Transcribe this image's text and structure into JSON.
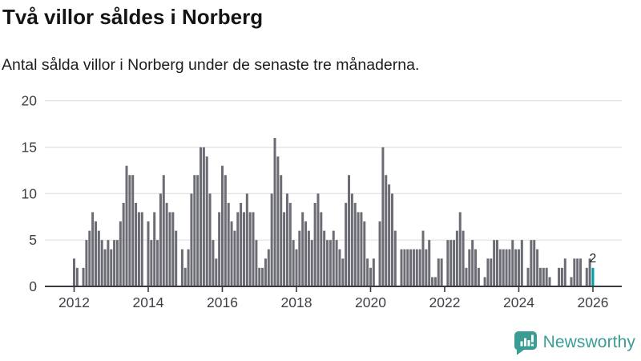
{
  "header": {
    "title": "Två villor såldes i Norberg",
    "subtitle": "Antal sålda villor i Norberg under de senaste tre månaderna."
  },
  "chart_data": {
    "type": "bar",
    "title": "Två villor såldes i Norberg",
    "description": "Antal sålda villor i Norberg under de senaste tre månaderna.",
    "x_start": "2012-01",
    "x_end": "2026-01",
    "bar_period": "month",
    "values": [
      3,
      2,
      0,
      2,
      5,
      6,
      8,
      7,
      6,
      5,
      4,
      5,
      4,
      5,
      5,
      7,
      9,
      13,
      12,
      12,
      9,
      8,
      8,
      0,
      7,
      5,
      8,
      5,
      10,
      12,
      9,
      8,
      8,
      6,
      0,
      4,
      2,
      4,
      10,
      12,
      12,
      15,
      15,
      14,
      10,
      5,
      3,
      8,
      13,
      12,
      9,
      7,
      6,
      8,
      9,
      8,
      10,
      8,
      8,
      5,
      2,
      2,
      3,
      4,
      10,
      16,
      14,
      12,
      8,
      10,
      9,
      5,
      4,
      6,
      8,
      7,
      6,
      5,
      9,
      10,
      8,
      6,
      5,
      5,
      6,
      5,
      4,
      3,
      9,
      12,
      10,
      9,
      8,
      8,
      7,
      3,
      2,
      3,
      0,
      7,
      15,
      12,
      11,
      10,
      6,
      0,
      4,
      4,
      4,
      4,
      4,
      4,
      4,
      6,
      4,
      5,
      1,
      1,
      3,
      3,
      0,
      5,
      5,
      5,
      6,
      8,
      6,
      2,
      4,
      5,
      4,
      2,
      0,
      1,
      3,
      3,
      5,
      5,
      4,
      4,
      4,
      4,
      5,
      4,
      4,
      5,
      0,
      2,
      5,
      5,
      4,
      2,
      2,
      2,
      1,
      0,
      0,
      2,
      2,
      3,
      0,
      1,
      3,
      3,
      3,
      0,
      2,
      3,
      2
    ],
    "highlight": {
      "index": 168,
      "value": 2,
      "label": "2"
    },
    "y_axis": {
      "ticks": [
        0,
        5,
        10,
        15,
        20
      ],
      "max": 20,
      "grid": true
    },
    "x_axis": {
      "tick_labels": [
        "2012",
        "2014",
        "2016",
        "2018",
        "2020",
        "2022",
        "2024",
        "2026"
      ],
      "base_year": 2012
    },
    "legend": false,
    "colors": {
      "bar": "#6c6c75",
      "highlight": "#00a0a4",
      "grid": "#e4e4e4",
      "axis": "#3b3b43",
      "tick_text": "#3f3f46",
      "value_label": "#1a1a1a"
    }
  },
  "footer": {
    "brand": "Newsworthy",
    "brand_color": "#3a9d95"
  }
}
